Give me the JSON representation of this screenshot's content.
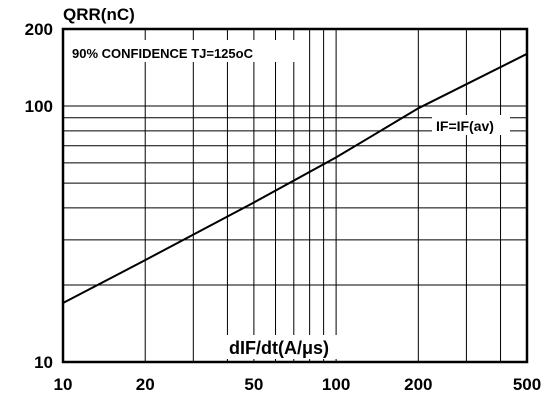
{
  "chart_data": {
    "type": "line",
    "x_scale": "log",
    "y_scale": "log",
    "xlim": [
      10,
      500
    ],
    "ylim": [
      10,
      200
    ],
    "xlabel": "dIF/dt(A/μs)",
    "ylabel": "QRR(nC)",
    "x_ticks": [
      10,
      20,
      50,
      100,
      200,
      500
    ],
    "y_ticks": [
      10,
      100,
      200
    ],
    "x_tick_labels": [
      "10",
      "20",
      "50",
      "100",
      "200",
      "500"
    ],
    "y_tick_labels": [
      "10",
      "100",
      "200"
    ],
    "grid": true,
    "annotations": [
      "90% CONFIDENCE TJ=125oC"
    ],
    "series": [
      {
        "name": "IF=IF(av)",
        "x": [
          10,
          20,
          50,
          100,
          200,
          500
        ],
        "y": [
          17,
          25,
          42,
          63,
          98,
          160
        ]
      }
    ]
  }
}
